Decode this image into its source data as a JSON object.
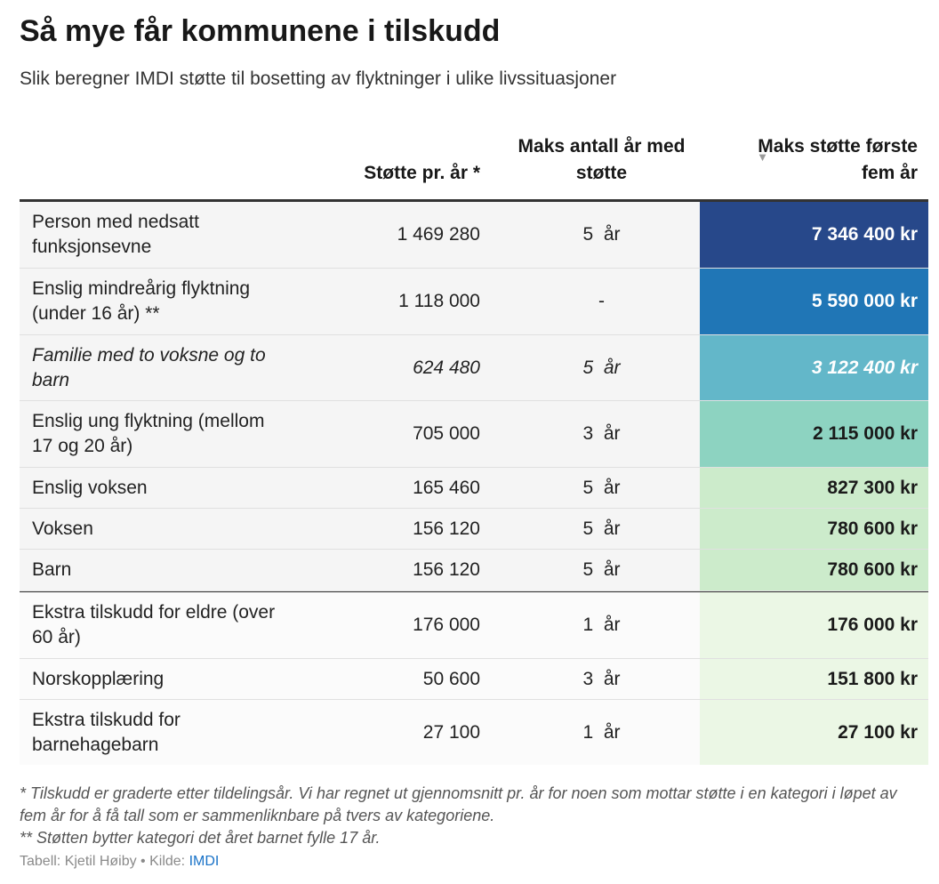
{
  "title": "Så mye får kommunene i tilskudd",
  "subtitle": "Slik beregner IMDI støtte til bosetting av flyktninger i ulike livssituasjoner",
  "colors": {
    "scale_darkest": "#27488a",
    "scale_dark": "#2076b6",
    "scale_mid": "#63b7c9",
    "scale_teal": "#8dd3c1",
    "scale_light": "#ccebcb",
    "scale_lightest": "#ebf7e5",
    "link": "#1a73c8"
  },
  "chart_data": {
    "type": "table",
    "columns": [
      "",
      "Støtte pr. år *",
      "Maks antall år med støtte",
      "Maks støtte første fem år"
    ],
    "sorted_column": "Maks støtte første fem år",
    "sort_indicator": "▼",
    "rows": [
      {
        "label": "Person med nedsatt funksjonsevne",
        "per_year": "1 469 280",
        "max_years": "5  år",
        "max_five": "7 346 400 kr",
        "value": 7346400,
        "bg": "#27488a",
        "fg": "#ffffff",
        "italic": false
      },
      {
        "label": "Enslig mindreårig flyktning (under 16 år) **",
        "per_year": "1 118 000",
        "max_years": "-",
        "max_five": "5 590 000 kr",
        "value": 5590000,
        "bg": "#2076b6",
        "fg": "#ffffff",
        "italic": false
      },
      {
        "label": "Familie med to voksne og to barn",
        "per_year": "624 480",
        "max_years": "5  år",
        "max_five": "3 122 400 kr",
        "value": 3122400,
        "bg": "#63b7c9",
        "fg": "#ffffff",
        "italic": true
      },
      {
        "label": "Enslig ung flyktning (mellom 17 og 20 år)",
        "per_year": "705 000",
        "max_years": "3  år",
        "max_five": "2 115 000 kr",
        "value": 2115000,
        "bg": "#8dd3c1",
        "fg": "#1a1a1a",
        "italic": false
      },
      {
        "label": "Enslig voksen",
        "per_year": "165 460",
        "max_years": "5  år",
        "max_five": "827 300 kr",
        "value": 827300,
        "bg": "#ccebcb",
        "fg": "#1a1a1a",
        "italic": false
      },
      {
        "label": "Voksen",
        "per_year": "156 120",
        "max_years": "5  år",
        "max_five": "780 600 kr",
        "value": 780600,
        "bg": "#ccebcb",
        "fg": "#1a1a1a",
        "italic": false
      },
      {
        "label": "Barn",
        "per_year": "156 120",
        "max_years": "5  år",
        "max_five": "780 600 kr",
        "value": 780600,
        "bg": "#ccebcb",
        "fg": "#1a1a1a",
        "italic": false
      },
      {
        "label": "Ekstra tilskudd for eldre (over 60 år)",
        "per_year": "176 000",
        "max_years": "1  år",
        "max_five": "176 000 kr",
        "value": 176000,
        "bg": "#ebf7e5",
        "fg": "#1a1a1a",
        "italic": false
      },
      {
        "label": "Norskopplæring",
        "per_year": "50 600",
        "max_years": "3  år",
        "max_five": "151 800 kr",
        "value": 151800,
        "bg": "#ebf7e5",
        "fg": "#1a1a1a",
        "italic": false
      },
      {
        "label": "Ekstra tilskudd for barnehagebarn",
        "per_year": "27 100",
        "max_years": "1  år",
        "max_five": "27 100 kr",
        "value": 27100,
        "bg": "#ebf7e5",
        "fg": "#1a1a1a",
        "italic": false
      }
    ]
  },
  "footnotes": {
    "note1": "* Tilskudd er graderte etter tildelingsår. Vi har regnet ut gjennomsnitt pr. år for noen som mottar støtte i en kategori i løpet av fem år for å få tall som er sammenliknbare på tvers av kategoriene.",
    "note2": "** Støtten bytter kategori det året barnet fylle 17 år."
  },
  "source": {
    "prefix": "Tabell: Kjetil Høiby • Kilde: ",
    "link_text": "IMDI"
  }
}
